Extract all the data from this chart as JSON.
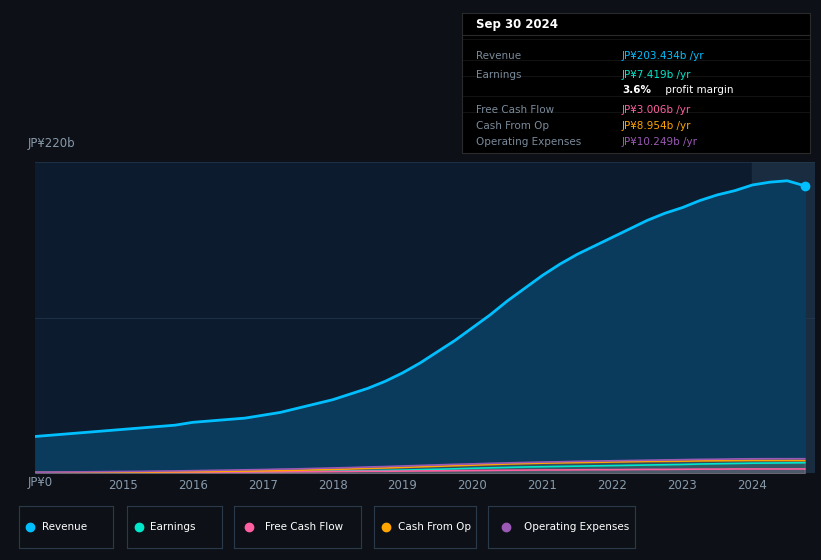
{
  "bg_color": "#0d1117",
  "plot_bg_color": "#0d1b2e",
  "grid_color": "#253a52",
  "text_color": "#8899aa",
  "ylabel_text": "JP¥220b",
  "y0_text": "JP¥0",
  "years": [
    2013.75,
    2014.0,
    2014.25,
    2014.5,
    2014.75,
    2015.0,
    2015.25,
    2015.5,
    2015.75,
    2016.0,
    2016.25,
    2016.5,
    2016.75,
    2017.0,
    2017.25,
    2017.5,
    2017.75,
    2018.0,
    2018.25,
    2018.5,
    2018.75,
    2019.0,
    2019.25,
    2019.5,
    2019.75,
    2020.0,
    2020.25,
    2020.5,
    2020.75,
    2021.0,
    2021.25,
    2021.5,
    2021.75,
    2022.0,
    2022.25,
    2022.5,
    2022.75,
    2023.0,
    2023.25,
    2023.5,
    2023.75,
    2024.0,
    2024.25,
    2024.5,
    2024.75
  ],
  "revenue": [
    26,
    27,
    28,
    29,
    30,
    31,
    32,
    33,
    34,
    36,
    37,
    38,
    39,
    41,
    43,
    46,
    49,
    52,
    56,
    60,
    65,
    71,
    78,
    86,
    94,
    103,
    112,
    122,
    131,
    140,
    148,
    155,
    161,
    167,
    173,
    179,
    184,
    188,
    193,
    197,
    200,
    204,
    206,
    207,
    203.434
  ],
  "earnings": [
    0.4,
    0.5,
    0.5,
    0.6,
    0.6,
    0.7,
    0.7,
    0.8,
    0.8,
    0.9,
    0.9,
    1.0,
    1.0,
    1.1,
    1.2,
    1.3,
    1.4,
    1.5,
    1.6,
    1.8,
    2.0,
    2.2,
    2.5,
    2.8,
    3.1,
    3.5,
    3.8,
    4.1,
    4.4,
    4.6,
    4.8,
    5.0,
    5.2,
    5.4,
    5.6,
    5.8,
    6.0,
    6.2,
    6.5,
    6.7,
    6.9,
    7.1,
    7.2,
    7.3,
    7.419
  ],
  "free_cash_flow": [
    0.3,
    0.3,
    0.4,
    0.4,
    0.5,
    0.5,
    0.5,
    0.6,
    0.6,
    0.7,
    0.7,
    0.8,
    0.8,
    0.9,
    1.0,
    1.1,
    1.1,
    1.2,
    1.3,
    1.4,
    1.4,
    1.5,
    1.6,
    1.7,
    1.8,
    1.9,
    2.0,
    2.1,
    2.2,
    2.3,
    2.3,
    2.4,
    2.5,
    2.5,
    2.6,
    2.7,
    2.7,
    2.8,
    2.9,
    2.9,
    3.0,
    3.0,
    3.0,
    3.0,
    3.006
  ],
  "cash_from_op": [
    0.5,
    0.5,
    0.6,
    0.6,
    0.7,
    0.7,
    0.8,
    0.9,
    1.0,
    1.1,
    1.2,
    1.4,
    1.5,
    1.7,
    1.9,
    2.1,
    2.4,
    2.7,
    3.0,
    3.4,
    3.7,
    4.1,
    4.5,
    4.9,
    5.3,
    5.7,
    6.1,
    6.5,
    6.8,
    7.1,
    7.3,
    7.5,
    7.7,
    7.9,
    8.1,
    8.3,
    8.4,
    8.5,
    8.7,
    8.8,
    8.9,
    9.0,
    9.0,
    9.0,
    8.954
  ],
  "op_expenses": [
    0.7,
    0.8,
    0.9,
    1.0,
    1.1,
    1.2,
    1.3,
    1.5,
    1.6,
    1.8,
    2.0,
    2.2,
    2.4,
    2.6,
    2.9,
    3.1,
    3.4,
    3.7,
    4.0,
    4.4,
    4.7,
    5.1,
    5.5,
    5.9,
    6.3,
    6.6,
    7.0,
    7.3,
    7.6,
    7.9,
    8.1,
    8.4,
    8.6,
    8.8,
    9.0,
    9.2,
    9.4,
    9.6,
    9.8,
    9.9,
    10.1,
    10.2,
    10.25,
    10.25,
    10.249
  ],
  "revenue_color": "#00bfff",
  "earnings_color": "#00e8cc",
  "fcf_color": "#ff5fa0",
  "cashop_color": "#ffa500",
  "opex_color": "#9b59b6",
  "revenue_fill": "#0a3a5c",
  "ylim": [
    0,
    220
  ],
  "xlim_start": 2013.75,
  "xlim_end": 2024.9,
  "xticks": [
    2015,
    2016,
    2017,
    2018,
    2019,
    2020,
    2021,
    2022,
    2023,
    2024
  ],
  "shade_start_x": 2024.0,
  "shade_color": "#1a2d40",
  "tooltip_title": "Sep 30 2024",
  "legend_items": [
    {
      "label": "Revenue",
      "color": "#00bfff"
    },
    {
      "label": "Earnings",
      "color": "#00e8cc"
    },
    {
      "label": "Free Cash Flow",
      "color": "#ff5fa0"
    },
    {
      "label": "Cash From Op",
      "color": "#ffa500"
    },
    {
      "label": "Operating Expenses",
      "color": "#9b59b6"
    }
  ]
}
